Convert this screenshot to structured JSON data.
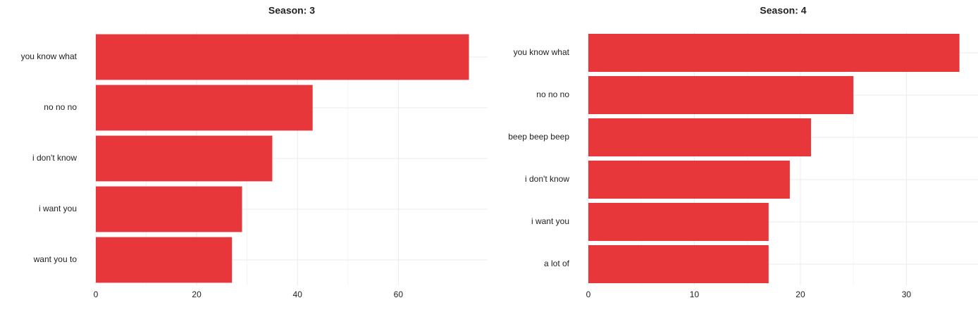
{
  "chart_data": [
    {
      "type": "bar",
      "orientation": "horizontal",
      "title": "Season: 3",
      "categories": [
        "you know what",
        "no no no",
        "i don't know",
        "i want you",
        "want you to"
      ],
      "values": [
        74,
        43,
        35,
        29,
        27
      ],
      "color": "#e8373a",
      "xlim": [
        0,
        77.7
      ],
      "xticks": [
        0,
        20,
        40,
        60
      ],
      "grid": true
    },
    {
      "type": "bar",
      "orientation": "horizontal",
      "title": "Season: 4",
      "categories": [
        "you know what",
        "no no no",
        "beep beep beep",
        "i don't know",
        "i want you",
        "a lot of"
      ],
      "values": [
        35,
        25,
        21,
        19,
        17,
        17
      ],
      "color": "#e8373a",
      "xlim": [
        0,
        36.75
      ],
      "xticks": [
        0,
        10,
        20,
        30
      ],
      "grid": true
    }
  ]
}
